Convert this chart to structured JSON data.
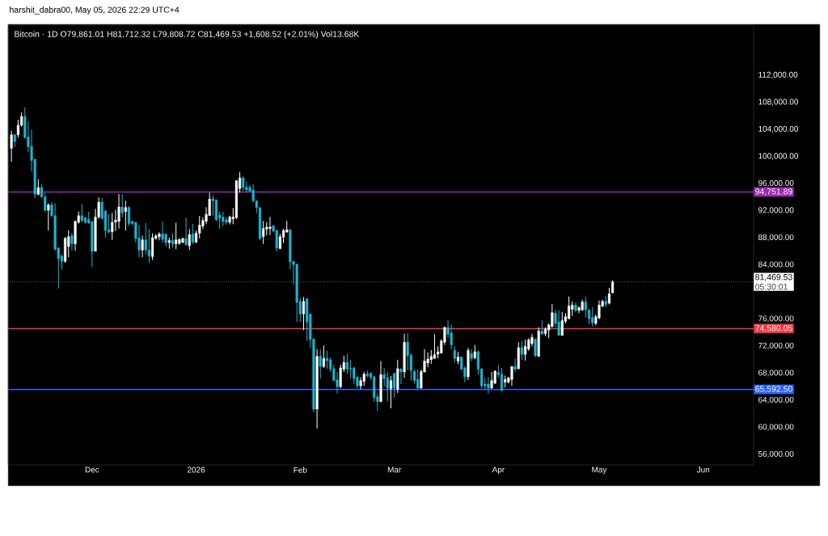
{
  "chart_data": {
    "type": "candlestick",
    "title": "Bitcoin · 1D  O79,861.01 H81,712.32 L79,808.72 C81,469.53 +1,608.52 (+2.01%) Vol13.68K",
    "annotations": [
      "harshit_dabra00, May 05, 2026 22:29 UTC+4",
      "05:30:01"
    ],
    "colors": [
      "#ffffff",
      "#1cb5d0",
      "#ffffff",
      "#ffffff",
      "#1cb5d0",
      "#1cb5d0",
      "#1cb5d0",
      "#1cb5d0",
      "#ffffff",
      "#1cb5d0",
      "#1cb5d0",
      "#ffffff",
      "#1cb5d0",
      "#1cb5d0",
      "#1cb5d0",
      "#1cb5d0",
      "#ffffff",
      "#ffffff",
      "#1cb5d0",
      "#ffffff",
      "#ffffff",
      "#1cb5d0",
      "#1cb5d0",
      "#1cb5d0",
      "#1cb5d0",
      "#ffffff",
      "#ffffff",
      "#1cb5d0",
      "#1cb5d0",
      "#1cb5d0",
      "#ffffff",
      "#ffffff",
      "#ffffff",
      "#1cb5d0",
      "#ffffff",
      "#1cb5d0",
      "#1cb5d0",
      "#1cb5d0",
      "#1cb5d0",
      "#ffffff",
      "#1cb5d0",
      "#1cb5d0",
      "#ffffff",
      "#ffffff",
      "#ffffff",
      "#1cb5d0",
      "#1cb5d0",
      "#ffffff",
      "#1cb5d0",
      "#ffffff",
      "#ffffff",
      "#ffffff",
      "#1cb5d0",
      "#ffffff",
      "#1cb5d0",
      "#ffffff",
      "#ffffff",
      "#ffffff",
      "#ffffff",
      "#ffffff",
      "#1cb5d0",
      "#1cb5d0",
      "#1cb5d0",
      "#1cb5d0",
      "#1cb5d0",
      "#ffffff",
      "#ffffff",
      "#ffffff",
      "#ffffff",
      "#1cb5d0",
      "#1cb5d0",
      "#1cb5d0",
      "#1cb5d0",
      "#1cb5d0",
      "#1cb5d0",
      "#ffffff",
      "#ffffff",
      "#ffffff",
      "#1cb5d0",
      "#1cb5d0",
      "#ffffff",
      "#ffffff",
      "#ffffff",
      "#1cb5d0",
      "#1cb5d0",
      "#1cb5d0",
      "#1cb5d0",
      "#ffffff",
      "#1cb5d0",
      "#1cb5d0",
      "#1cb5d0",
      "#ffffff",
      "#1cb5d0",
      "#ffffff",
      "#1cb5d0",
      "#1cb5d0",
      "#1cb5d0",
      "#1cb5d0",
      "#ffffff",
      "#ffffff",
      "#1cb5d0",
      "#1cb5d0",
      "#1cb5d0",
      "#1cb5d0",
      "#ffffff",
      "#ffffff",
      "#1cb5d0",
      "#1cb5d0",
      "#1cb5d0",
      "#1cb5d0",
      "#ffffff",
      "#1cb5d0",
      "#1cb5d0",
      "#ffffff",
      "#1cb5d0",
      "#ffffff",
      "#1cb5d0",
      "#ffffff",
      "#1cb5d0",
      "#1cb5d0",
      "#1cb5d0",
      "#1cb5d0",
      "#ffffff",
      "#ffffff",
      "#ffffff",
      "#ffffff",
      "#ffffff",
      "#ffffff",
      "#ffffff",
      "#ffffff",
      "#1cb5d0",
      "#1cb5d0",
      "#1cb5d0",
      "#ffffff",
      "#1cb5d0",
      "#1cb5d0",
      "#ffffff",
      "#1cb5d0",
      "#ffffff",
      "#1cb5d0",
      "#1cb5d0",
      "#1cb5d0",
      "#1cb5d0",
      "#ffffff",
      "#ffffff",
      "#1cb5d0",
      "#1cb5d0",
      "#ffffff",
      "#ffffff",
      "#ffffff",
      "#1cb5d0",
      "#ffffff",
      "#1cb5d0",
      "#ffffff",
      "#ffffff",
      "#ffffff",
      "#1cb5d0",
      "#ffffff",
      "#1cb5d0",
      "#ffffff",
      "#ffffff",
      "#ffffff",
      "#1cb5d0",
      "#1cb5d0",
      "#ffffff",
      "#ffffff",
      "#ffffff",
      "#ffffff",
      "#1cb5d0",
      "#ffffff",
      "#ffffff",
      "#1cb5d0",
      "#1cb5d0",
      "#1cb5d0",
      "#ffffff",
      "#ffffff",
      "#ffffff",
      "#1cb5d0",
      "#ffffff",
      "#ffffff"
    ],
    "xlim": [
      "2025-11-06",
      "2026-06-16"
    ],
    "xticks": [
      {
        "value": "2025-12-01",
        "label": "Dec"
      },
      {
        "value": "2026-01-01",
        "label": "2026"
      },
      {
        "value": "2026-02-01",
        "label": "Feb"
      },
      {
        "value": "2026-03-01",
        "label": "Mar"
      },
      {
        "value": "2026-04-01",
        "label": "Apr"
      },
      {
        "value": "2026-05-01",
        "label": "May"
      },
      {
        "value": "2026-06-01",
        "label": "Jun"
      }
    ],
    "ylim": [
      54450,
      119400
    ],
    "yticks": [
      {
        "value": 56000,
        "label": "56,000.00"
      },
      {
        "value": 60000,
        "label": "60,000.00"
      },
      {
        "value": 64000,
        "label": "64,000.00"
      },
      {
        "value": 68000,
        "label": "68,000.00"
      },
      {
        "value": 72000,
        "label": "72,000.00"
      },
      {
        "value": 76000,
        "label": "76,000.00"
      },
      {
        "value": 84000,
        "label": "84,000.00"
      },
      {
        "value": 88000,
        "label": "88,000.00"
      },
      {
        "value": 92000,
        "label": "92,000.00"
      },
      {
        "value": 96000,
        "label": "96,000.00"
      },
      {
        "value": 100000,
        "label": "100,000.00"
      },
      {
        "value": 104000,
        "label": "104,000.00"
      },
      {
        "value": 108000,
        "label": "108,000.00"
      },
      {
        "value": 112000,
        "label": "112,000.00"
      }
    ],
    "ref_lines": [
      {
        "axis": "y",
        "value": 94751.89,
        "label": "94,751.89",
        "color": "#9c27b0"
      },
      {
        "axis": "y",
        "value": 74580.05,
        "label": "74,580.05",
        "color": "#f23645"
      },
      {
        "axis": "y",
        "value": 65592.5,
        "label": "65,592.50",
        "color": "#2962ff"
      },
      {
        "axis": "y",
        "value": 81469.53,
        "label": "81,469.53",
        "color": "#ffffff",
        "line_style": "dotted"
      }
    ],
    "x": [
      "2025-11-07",
      "2025-11-08",
      "2025-11-09",
      "2025-11-10",
      "2025-11-11",
      "2025-11-12",
      "2025-11-13",
      "2025-11-14",
      "2025-11-15",
      "2025-11-16",
      "2025-11-17",
      "2025-11-18",
      "2025-11-19",
      "2025-11-20",
      "2025-11-21",
      "2025-11-22",
      "2025-11-23",
      "2025-11-24",
      "2025-11-25",
      "2025-11-26",
      "2025-11-27",
      "2025-11-28",
      "2025-11-29",
      "2025-11-30",
      "2025-12-01",
      "2025-12-02",
      "2025-12-03",
      "2025-12-04",
      "2025-12-05",
      "2025-12-06",
      "2025-12-07",
      "2025-12-08",
      "2025-12-09",
      "2025-12-10",
      "2025-12-11",
      "2025-12-12",
      "2025-12-13",
      "2025-12-14",
      "2025-12-15",
      "2025-12-16",
      "2025-12-17",
      "2025-12-18",
      "2025-12-19",
      "2025-12-20",
      "2025-12-21",
      "2025-12-22",
      "2025-12-23",
      "2025-12-24",
      "2025-12-25",
      "2025-12-26",
      "2025-12-27",
      "2025-12-28",
      "2025-12-29",
      "2025-12-30",
      "2025-12-31",
      "2026-01-01",
      "2026-01-02",
      "2026-01-03",
      "2026-01-04",
      "2026-01-05",
      "2026-01-06",
      "2026-01-07",
      "2026-01-08",
      "2026-01-09",
      "2026-01-10",
      "2026-01-11",
      "2026-01-12",
      "2026-01-13",
      "2026-01-14",
      "2026-01-15",
      "2026-01-16",
      "2026-01-17",
      "2026-01-18",
      "2026-01-19",
      "2026-01-20",
      "2026-01-21",
      "2026-01-22",
      "2026-01-23",
      "2026-01-24",
      "2026-01-25",
      "2026-01-26",
      "2026-01-27",
      "2026-01-28",
      "2026-01-29",
      "2026-01-30",
      "2026-01-31",
      "2026-02-01",
      "2026-02-02",
      "2026-02-03",
      "2026-02-04",
      "2026-02-05",
      "2026-02-06",
      "2026-02-07",
      "2026-02-08",
      "2026-02-09",
      "2026-02-10",
      "2026-02-11",
      "2026-02-12",
      "2026-02-13",
      "2026-02-14",
      "2026-02-15",
      "2026-02-16",
      "2026-02-17",
      "2026-02-18",
      "2026-02-19",
      "2026-02-20",
      "2026-02-21",
      "2026-02-22",
      "2026-02-23",
      "2026-02-24",
      "2026-02-25",
      "2026-02-26",
      "2026-02-27",
      "2026-02-28",
      "2026-03-01",
      "2026-03-02",
      "2026-03-03",
      "2026-03-04",
      "2026-03-05",
      "2026-03-06",
      "2026-03-07",
      "2026-03-08",
      "2026-03-09",
      "2026-03-10",
      "2026-03-11",
      "2026-03-12",
      "2026-03-13",
      "2026-03-14",
      "2026-03-15",
      "2026-03-16",
      "2026-03-17",
      "2026-03-18",
      "2026-03-19",
      "2026-03-20",
      "2026-03-21",
      "2026-03-22",
      "2026-03-23",
      "2026-03-24",
      "2026-03-25",
      "2026-03-26",
      "2026-03-27",
      "2026-03-28",
      "2026-03-29",
      "2026-03-30",
      "2026-03-31",
      "2026-04-01",
      "2026-04-02",
      "2026-04-03",
      "2026-04-04",
      "2026-04-05",
      "2026-04-06",
      "2026-04-07",
      "2026-04-08",
      "2026-04-09",
      "2026-04-10",
      "2026-04-11",
      "2026-04-12",
      "2026-04-13",
      "2026-04-14",
      "2026-04-15",
      "2026-04-16",
      "2026-04-17",
      "2026-04-18",
      "2026-04-19",
      "2026-04-20",
      "2026-04-21",
      "2026-04-22",
      "2026-04-23",
      "2026-04-24",
      "2026-04-25",
      "2026-04-26",
      "2026-04-27",
      "2026-04-28",
      "2026-04-29",
      "2026-04-30",
      "2026-05-01",
      "2026-05-02",
      "2026-05-03",
      "2026-05-04",
      "2026-05-05"
    ],
    "ohlc": [
      [
        101200,
        103800,
        99200,
        103200
      ],
      [
        103200,
        103300,
        101400,
        102200
      ],
      [
        103200,
        105400,
        102800,
        104600
      ],
      [
        104600,
        106500,
        104400,
        105900
      ],
      [
        105900,
        107250,
        102600,
        102800
      ],
      [
        102900,
        105200,
        100600,
        101400
      ],
      [
        101500,
        103900,
        97800,
        99400
      ],
      [
        99600,
        99600,
        93850,
        94400
      ],
      [
        94400,
        96600,
        94240,
        95400
      ],
      [
        95400,
        95840,
        93850,
        94050
      ],
      [
        94050,
        94650,
        91850,
        92050
      ],
      [
        92050,
        93050,
        89070,
        92850
      ],
      [
        92850,
        93250,
        91050,
        91250
      ],
      [
        91250,
        93050,
        86090,
        86300
      ],
      [
        86500,
        86500,
        80500,
        84900
      ],
      [
        85300,
        85500,
        83300,
        84500
      ],
      [
        84500,
        88100,
        84300,
        87900
      ],
      [
        86700,
        89070,
        85100,
        88150
      ],
      [
        88300,
        88700,
        86100,
        87100
      ],
      [
        87100,
        90540,
        86100,
        90400
      ],
      [
        90270,
        91850,
        90070,
        91250
      ],
      [
        91250,
        92930,
        90270,
        90540
      ],
      [
        90950,
        91050,
        90070,
        90270
      ],
      [
        90700,
        91850,
        90070,
        90150
      ],
      [
        90400,
        90400,
        83650,
        86000
      ],
      [
        86000,
        92250,
        86000,
        91050
      ],
      [
        91050,
        93960,
        90770,
        93250
      ],
      [
        93250,
        93850,
        90650,
        90850
      ],
      [
        91950,
        92050,
        87990,
        89070
      ],
      [
        89200,
        91500,
        88700,
        88800
      ],
      [
        88870,
        91650,
        87680,
        90270
      ],
      [
        90300,
        92100,
        89000,
        90600
      ],
      [
        90400,
        94450,
        89350,
        92540
      ],
      [
        92540,
        94450,
        91000,
        91650
      ],
      [
        91850,
        93450,
        89070,
        92450
      ],
      [
        92450,
        92650,
        89700,
        90070
      ],
      [
        90400,
        90500,
        89800,
        90070
      ],
      [
        90270,
        90270,
        87300,
        87880
      ],
      [
        88000,
        89870,
        85100,
        86170
      ],
      [
        86170,
        88300,
        85100,
        87680
      ],
      [
        87680,
        90150,
        85500,
        86170
      ],
      [
        86170,
        89270,
        84300,
        85300
      ],
      [
        85200,
        88650,
        84700,
        88000
      ],
      [
        87880,
        88500,
        87700,
        88270
      ],
      [
        88150,
        88800,
        87600,
        88550
      ],
      [
        88550,
        90400,
        87300,
        87750
      ],
      [
        88550,
        88550,
        86670,
        87280
      ],
      [
        87280,
        88000,
        86370,
        87600
      ],
      [
        87600,
        88650,
        86530,
        87080
      ],
      [
        87080,
        90200,
        86300,
        87680
      ],
      [
        87150,
        87850,
        86950,
        87750
      ],
      [
        87280,
        88000,
        87200,
        87880
      ],
      [
        87880,
        90950,
        86870,
        86960
      ],
      [
        86800,
        89270,
        86150,
        88470
      ],
      [
        88550,
        90050,
        87080,
        87350
      ],
      [
        87350,
        89050,
        87200,
        88670
      ],
      [
        88670,
        91200,
        87900,
        89850
      ],
      [
        89700,
        91000,
        89270,
        90540
      ],
      [
        90400,
        92500,
        90000,
        91450
      ],
      [
        91250,
        94650,
        91250,
        93730
      ],
      [
        93730,
        94250,
        91250,
        93450
      ],
      [
        93570,
        93650,
        90470,
        90650
      ],
      [
        91350,
        91850,
        89270,
        90850
      ],
      [
        91050,
        91850,
        89700,
        90400
      ],
      [
        90650,
        91050,
        89950,
        90270
      ],
      [
        90270,
        91250,
        89950,
        91050
      ],
      [
        90770,
        92370,
        89990,
        91050
      ],
      [
        90950,
        96430,
        90770,
        96430
      ],
      [
        95250,
        97700,
        94650,
        96830
      ],
      [
        96830,
        97050,
        94900,
        95440
      ],
      [
        95440,
        96230,
        94650,
        95050
      ],
      [
        95440,
        95800,
        94850,
        94850
      ],
      [
        95050,
        95900,
        93250,
        93450
      ],
      [
        93450,
        93450,
        91650,
        92450
      ],
      [
        92450,
        92450,
        87680,
        87880
      ],
      [
        88170,
        90470,
        87080,
        89350
      ],
      [
        89270,
        90270,
        88350,
        89570
      ],
      [
        89350,
        91050,
        88400,
        89570
      ],
      [
        89770,
        89870,
        88850,
        88950
      ],
      [
        89070,
        89190,
        86000,
        86470
      ],
      [
        86400,
        88570,
        86300,
        88150
      ],
      [
        88070,
        89350,
        87200,
        89070
      ],
      [
        88800,
        90470,
        88800,
        89190
      ],
      [
        89190,
        89190,
        83300,
        84420
      ],
      [
        84500,
        84500,
        81100,
        84020
      ],
      [
        84100,
        84100,
        75550,
        78440
      ],
      [
        78600,
        79100,
        75550,
        76740
      ],
      [
        76740,
        79240,
        74350,
        78600
      ],
      [
        79000,
        79000,
        72750,
        75550
      ],
      [
        76740,
        76740,
        71760,
        72950
      ],
      [
        73040,
        73160,
        62210,
        62680
      ],
      [
        62680,
        71550,
        59820,
        70480
      ],
      [
        70480,
        71550,
        67180,
        68980
      ],
      [
        68980,
        72080,
        68770,
        70170
      ],
      [
        70170,
        71280,
        68620,
        69850
      ],
      [
        69970,
        70290,
        68170,
        68570
      ],
      [
        68650,
        69250,
        66780,
        66900
      ],
      [
        67000,
        68170,
        64990,
        65990
      ],
      [
        65990,
        69250,
        65760,
        68770
      ],
      [
        68570,
        70570,
        68170,
        69570
      ],
      [
        69570,
        70880,
        67870,
        68570
      ],
      [
        68700,
        69970,
        67280,
        68570
      ],
      [
        68770,
        68900,
        66400,
        67180
      ],
      [
        67380,
        67580,
        65760,
        66120
      ],
      [
        66120,
        67400,
        65600,
        66900
      ],
      [
        66780,
        68170,
        66120,
        67850
      ],
      [
        67850,
        68370,
        67380,
        67580
      ],
      [
        67980,
        68100,
        67000,
        67380
      ],
      [
        67460,
        67580,
        63800,
        64390
      ],
      [
        64510,
        64990,
        62420,
        63800
      ],
      [
        63800,
        69770,
        63680,
        67780
      ],
      [
        67780,
        68770,
        65990,
        67180
      ],
      [
        67300,
        68170,
        63820,
        65790
      ],
      [
        65700,
        67580,
        62800,
        66900
      ],
      [
        67980,
        67980,
        64390,
        65790
      ],
      [
        65600,
        69970,
        65070,
        68650
      ],
      [
        68570,
        68770,
        66380,
        68170
      ],
      [
        68170,
        73830,
        67300,
        72560
      ],
      [
        72560,
        73970,
        68430,
        70570
      ],
      [
        70640,
        70880,
        66900,
        68380
      ],
      [
        68260,
        68500,
        66470,
        66900
      ],
      [
        67060,
        68550,
        65580,
        65790
      ],
      [
        65790,
        68500,
        65680,
        68260
      ],
      [
        68170,
        71550,
        68090,
        69770
      ],
      [
        69500,
        71050,
        68870,
        70090
      ],
      [
        69970,
        71400,
        69370,
        70480
      ],
      [
        70170,
        73750,
        70170,
        70760
      ],
      [
        70800,
        71950,
        70170,
        71140
      ],
      [
        70960,
        73000,
        70880,
        72750
      ],
      [
        72560,
        74860,
        72160,
        74740
      ],
      [
        74740,
        75820,
        73160,
        73750
      ],
      [
        73940,
        75130,
        71550,
        72160
      ],
      [
        71360,
        71950,
        69570,
        70170
      ],
      [
        69770,
        71160,
        69300,
        70370
      ],
      [
        70370,
        70480,
        68470,
        68570
      ],
      [
        68770,
        69000,
        66650,
        67460
      ],
      [
        67460,
        71750,
        67000,
        71360
      ],
      [
        70880,
        71550,
        69770,
        70170
      ],
      [
        70250,
        72160,
        70050,
        71160
      ],
      [
        71160,
        71360,
        67780,
        68570
      ],
      [
        68650,
        68650,
        65790,
        66120
      ],
      [
        66380,
        67300,
        65580,
        66120
      ],
      [
        66380,
        67400,
        64930,
        65790
      ],
      [
        65790,
        68170,
        65680,
        66900
      ],
      [
        66500,
        68430,
        66380,
        68300
      ],
      [
        68100,
        69170,
        67380,
        67780
      ],
      [
        67850,
        68770,
        65400,
        65400
      ],
      [
        66670,
        67650,
        65880,
        67060
      ],
      [
        66670,
        67460,
        66450,
        67300
      ],
      [
        67060,
        68980,
        66140,
        68980
      ],
      [
        68980,
        70170,
        68170,
        68570
      ],
      [
        68650,
        72560,
        68570,
        71760
      ],
      [
        71760,
        72750,
        69970,
        70760
      ],
      [
        70760,
        72950,
        69850,
        71950
      ],
      [
        71550,
        73160,
        71280,
        72910
      ],
      [
        72350,
        73750,
        71950,
        73280
      ],
      [
        73040,
        73040,
        70370,
        70570
      ],
      [
        70480,
        74740,
        70370,
        74230
      ],
      [
        74230,
        75820,
        73750,
        73750
      ],
      [
        73830,
        74740,
        73450,
        74540
      ],
      [
        74350,
        75330,
        73160,
        75130
      ],
      [
        74860,
        78200,
        74740,
        76930
      ],
      [
        76850,
        77340,
        74740,
        75330
      ],
      [
        75550,
        77300,
        73550,
        73550
      ],
      [
        73550,
        77030,
        73550,
        75750
      ],
      [
        75670,
        76850,
        75330,
        76340
      ],
      [
        76040,
        79320,
        75930,
        77930
      ],
      [
        77420,
        78600,
        76450,
        78050
      ],
      [
        78050,
        78440,
        77030,
        77260
      ],
      [
        77260,
        77900,
        76850,
        77660
      ],
      [
        77340,
        78850,
        77150,
        78520
      ],
      [
        78520,
        79320,
        76210,
        77340
      ],
      [
        77340,
        77420,
        75250,
        76040
      ],
      [
        76210,
        77730,
        74870,
        75430
      ],
      [
        75330,
        76650,
        75050,
        76340
      ],
      [
        76150,
        78720,
        75930,
        78050
      ],
      [
        77900,
        78850,
        77730,
        78600
      ],
      [
        78600,
        79360,
        77730,
        78130
      ],
      [
        78320,
        80590,
        78130,
        79710
      ],
      [
        79861.01,
        81712.32,
        79808.72,
        81469.53
      ]
    ]
  }
}
